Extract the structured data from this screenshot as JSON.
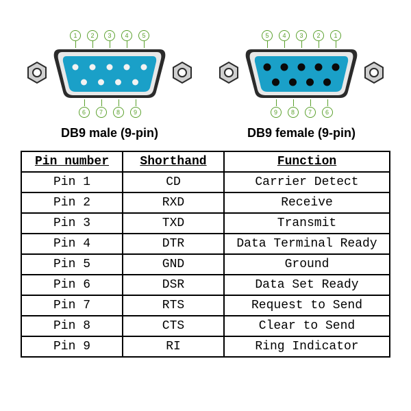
{
  "colors": {
    "face": "#1aa0c8",
    "shell_outer": "#2b2b2b",
    "shell_inner": "#e8e8e8",
    "nut_fill": "#d0d0d0",
    "nut_stroke": "#2b2b2b",
    "pin_label": "#5aa02c",
    "male_pin": "#f2f2f2",
    "female_hole": "#0a0a0a"
  },
  "connectors": [
    {
      "label": "DB9 male (9-pin)",
      "type": "male",
      "top_numbers": [
        "1",
        "2",
        "3",
        "4",
        "5"
      ],
      "bottom_numbers": [
        "6",
        "7",
        "8",
        "9"
      ]
    },
    {
      "label": "DB9 female (9-pin)",
      "type": "female",
      "top_numbers": [
        "5",
        "4",
        "3",
        "2",
        "1"
      ],
      "bottom_numbers": [
        "9",
        "8",
        "7",
        "6"
      ]
    }
  ],
  "table": {
    "columns": [
      "Pin number",
      "Shorthand",
      "Function"
    ],
    "rows": [
      [
        "Pin 1",
        "CD",
        "Carrier Detect"
      ],
      [
        "Pin 2",
        "RXD",
        "Receive"
      ],
      [
        "Pin 3",
        "TXD",
        "Transmit"
      ],
      [
        "Pin 4",
        "DTR",
        "Data Terminal Ready"
      ],
      [
        "Pin 5",
        "GND",
        "Ground"
      ],
      [
        "Pin 6",
        "DSR",
        "Data Set Ready"
      ],
      [
        "Pin 7",
        "RTS",
        "Request to Send"
      ],
      [
        "Pin 8",
        "CTS",
        "Clear to Send"
      ],
      [
        "Pin 9",
        "RI",
        "Ring Indicator"
      ]
    ]
  }
}
